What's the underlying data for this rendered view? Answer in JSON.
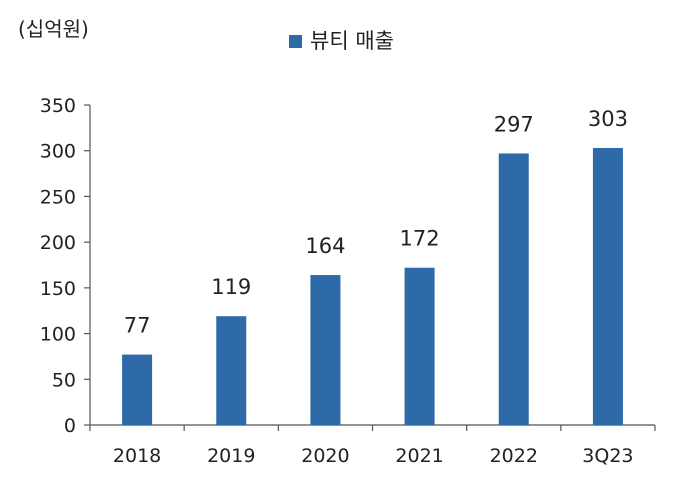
{
  "chart_data": {
    "type": "bar",
    "unit_label": "(십억원)",
    "categories": [
      "2018",
      "2019",
      "2020",
      "2021",
      "2022",
      "3Q23"
    ],
    "series": [
      {
        "name": "뷰티 매출",
        "values": [
          77,
          119,
          164,
          172,
          297,
          303
        ],
        "color": "#2e6aa8"
      }
    ],
    "data_labels": [
      "77",
      "119",
      "164",
      "172",
      "297",
      "303"
    ],
    "ylim": [
      0,
      350
    ],
    "yticks": [
      0,
      50,
      100,
      150,
      200,
      250,
      300,
      350
    ],
    "ytick_labels": [
      "0",
      "50",
      "100",
      "150",
      "200",
      "250",
      "300",
      "350"
    ],
    "grid": false,
    "legend_position": "top-center"
  }
}
